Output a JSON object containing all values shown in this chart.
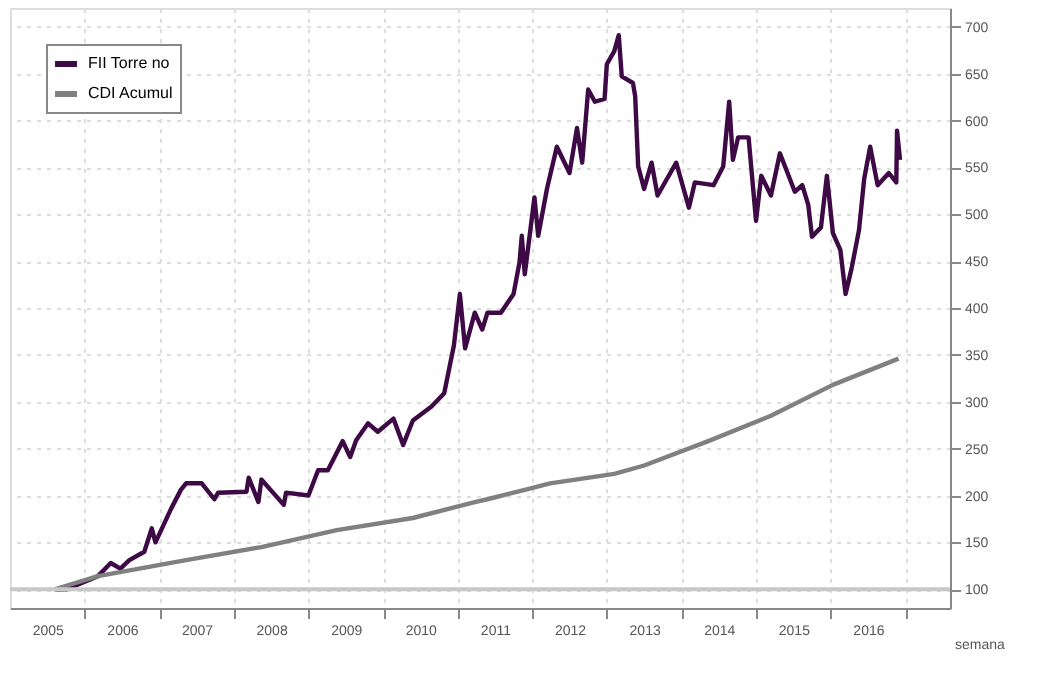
{
  "chart_data": {
    "type": "line",
    "xlabel": "semana",
    "xlim": [
      2005.0,
      2017.6
    ],
    "ylim": [
      80,
      720
    ],
    "xticks": [
      {
        "value": 2005.5,
        "label": "2005"
      },
      {
        "value": 2006,
        "label": null
      },
      {
        "value": 2006.5,
        "label": "2006"
      },
      {
        "value": 2007,
        "label": null
      },
      {
        "value": 2007.5,
        "label": "2007"
      },
      {
        "value": 2008,
        "label": null
      },
      {
        "value": 2008.5,
        "label": "2008"
      },
      {
        "value": 2009,
        "label": null
      },
      {
        "value": 2009.5,
        "label": "2009"
      },
      {
        "value": 2010,
        "label": null
      },
      {
        "value": 2010.5,
        "label": "2010"
      },
      {
        "value": 2011,
        "label": null
      },
      {
        "value": 2011.5,
        "label": "2011"
      },
      {
        "value": 2012,
        "label": null
      },
      {
        "value": 2012.5,
        "label": "2012"
      },
      {
        "value": 2013,
        "label": null
      },
      {
        "value": 2013.5,
        "label": "2013"
      },
      {
        "value": 2014,
        "label": null
      },
      {
        "value": 2014.5,
        "label": "2014"
      },
      {
        "value": 2015,
        "label": null
      },
      {
        "value": 2015.5,
        "label": "2015"
      },
      {
        "value": 2016,
        "label": null
      },
      {
        "value": 2016.5,
        "label": "2016"
      },
      {
        "value": 2017,
        "label": null
      }
    ],
    "yticks": [
      100,
      150,
      200,
      250,
      300,
      350,
      400,
      450,
      500,
      550,
      600,
      650,
      700
    ],
    "grid": true,
    "legend": "top left",
    "marker": "none",
    "line_style": "solid",
    "ref_lines": [
      {
        "axis": "y",
        "value": 100,
        "label": null,
        "color": "#c8c8c8"
      }
    ],
    "series": [
      {
        "name": "FII Torre no",
        "color": "#3d0a45",
        "x": [
          2005.6,
          2005.76,
          2006.18,
          2006.35,
          2006.48,
          2006.6,
          2006.8,
          2006.9,
          2006.95,
          2007.16,
          2007.29,
          2007.36,
          2007.57,
          2007.74,
          2007.79,
          2008.17,
          2008.2,
          2008.33,
          2008.37,
          2008.67,
          2008.7,
          2009.0,
          2009.13,
          2009.26,
          2009.46,
          2009.56,
          2009.64,
          2009.8,
          2009.93,
          2010.14,
          2010.27,
          2010.4,
          2010.65,
          2010.82,
          2010.95,
          2011.03,
          2011.1,
          2011.23,
          2011.33,
          2011.4,
          2011.58,
          2011.75,
          2011.83,
          2011.86,
          2011.9,
          2012.03,
          2012.08,
          2012.2,
          2012.33,
          2012.5,
          2012.6,
          2012.67,
          2012.75,
          2012.84,
          2012.97,
          2013.0,
          2013.1,
          2013.16,
          2013.2,
          2013.35,
          2013.38,
          2013.42,
          2013.5,
          2013.6,
          2013.68,
          2013.93,
          2014.1,
          2014.18,
          2014.43,
          2014.56,
          2014.64,
          2014.69,
          2014.76,
          2014.9,
          2015.0,
          2015.07,
          2015.2,
          2015.32,
          2015.52,
          2015.62,
          2015.7,
          2015.75,
          2015.87,
          2015.95,
          2016.03,
          2016.13,
          2016.2,
          2016.28,
          2016.38,
          2016.45,
          2016.53,
          2016.63,
          2016.78,
          2016.88,
          2016.89,
          2016.93
        ],
        "values": [
          100,
          100,
          114,
          128,
          122,
          131,
          140,
          165,
          150,
          186,
          206,
          213,
          213,
          196,
          203,
          204,
          219,
          193,
          217,
          190,
          203,
          200,
          227,
          227,
          258,
          241,
          259,
          277,
          268,
          282,
          254,
          280,
          295,
          309,
          360,
          415,
          357,
          395,
          377,
          395,
          395,
          415,
          449,
          477,
          436,
          518,
          477,
          528,
          572,
          544,
          592,
          555,
          633,
          620,
          623,
          660,
          674,
          691,
          647,
          640,
          626,
          551,
          527,
          555,
          520,
          555,
          507,
          534,
          531,
          551,
          620,
          558,
          582,
          582,
          493,
          541,
          520,
          565,
          524,
          531,
          510,
          476,
          486,
          541,
          480,
          462,
          415,
          442,
          483,
          538,
          572,
          531,
          544,
          534,
          589,
          558
        ]
      },
      {
        "name": "CDI Acumul",
        "color": "#808080",
        "x": [
          2005.6,
          2006.18,
          2007.36,
          2008.37,
          2009.38,
          2010.4,
          2011.23,
          2011.4,
          2011.9,
          2012.24,
          2013.1,
          2013.5,
          2014.36,
          2015.2,
          2016.03,
          2016.91
        ],
        "values": [
          100,
          114,
          131,
          145,
          163,
          176,
          193,
          196,
          206,
          213,
          223,
          232,
          258,
          285,
          318,
          346
        ]
      }
    ]
  }
}
